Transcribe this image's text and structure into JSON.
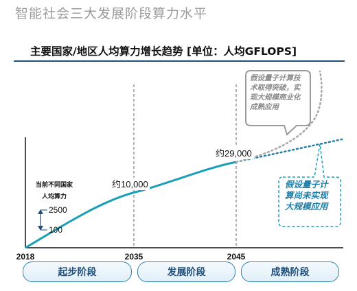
{
  "page_title": "智能社会三大发展阶段算力水平",
  "chart_data": {
    "type": "line",
    "title": "主要国家/地区人均算力增长趋势 [单位：人均GFLOPS]",
    "x_ticks": [
      "2018",
      "2035",
      "2045"
    ],
    "points": [
      {
        "year": 2035,
        "label": "约10,000"
      },
      {
        "year": 2045,
        "label": "约29,000"
      }
    ],
    "current_level": {
      "label_line1": "当前不同国家",
      "label_line2": "人均算力",
      "high": "2500",
      "low": "100"
    },
    "scenarios": [
      {
        "label": "假设量子计算技术取得突破，实现大规模商业化成熟应用",
        "style": "dotted",
        "color": "#a6a6a6"
      },
      {
        "label": "假设量子计算尚未实现大规模应用",
        "style": "dotted",
        "color": "#1f7fa8"
      }
    ],
    "colors": {
      "main_line": "#1a9fb8",
      "dotted_line": "#1f7fa8",
      "upside_line": "#a6a6a6"
    },
    "stages": [
      "起步阶段",
      "发展阶段",
      "成熟阶段"
    ]
  }
}
